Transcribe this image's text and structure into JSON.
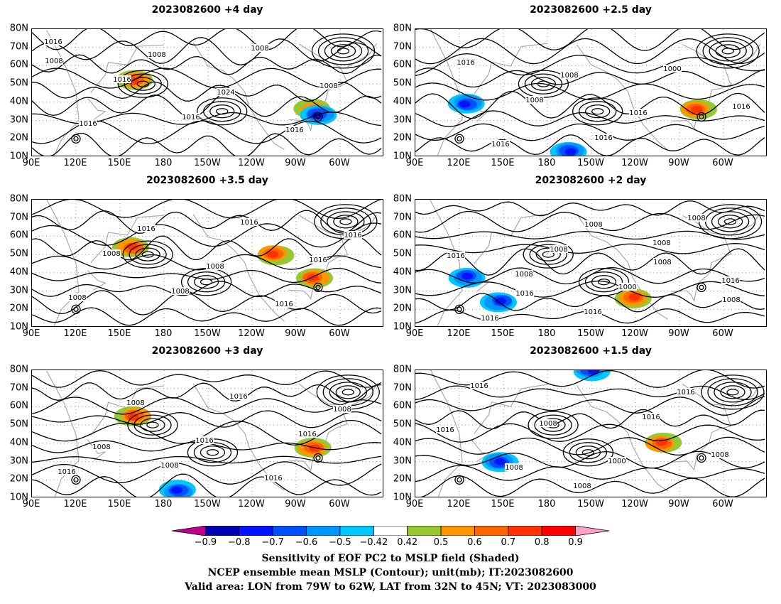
{
  "panels": [
    {
      "title": "2023082600  +4 day",
      "contour_labels": [
        "1016",
        "1016",
        "1016",
        "1008",
        "1008",
        "1016",
        "1008",
        "1024",
        "1016",
        "1008"
      ],
      "shading": [
        {
          "lon": 160,
          "lat": 52,
          "kind": "warm"
        },
        {
          "lon": 282,
          "lat": 36,
          "kind": "warm"
        },
        {
          "lon": 285,
          "lat": 33,
          "kind": "cold"
        }
      ]
    },
    {
      "title": "2023082600  +2.5 day",
      "contour_labels": [
        "1016",
        "1008",
        "1016",
        "1000",
        "1016",
        "1016",
        "1008",
        "1016"
      ],
      "shading": [
        {
          "lon": 282,
          "lat": 36,
          "kind": "warm"
        },
        {
          "lon": 125,
          "lat": 39,
          "kind": "cold"
        },
        {
          "lon": 195,
          "lat": 13,
          "kind": "cold"
        }
      ]
    },
    {
      "title": "2023082600  +3.5 day",
      "contour_labels": [
        "1008",
        "1008",
        "1016",
        "1016",
        "1008",
        "1016",
        "1008",
        "1016",
        "1016"
      ],
      "shading": [
        {
          "lon": 158,
          "lat": 54,
          "kind": "warm"
        },
        {
          "lon": 282,
          "lat": 37,
          "kind": "warm"
        },
        {
          "lon": 255,
          "lat": 50,
          "kind": "warm"
        }
      ]
    },
    {
      "title": "2023082600  +2 day",
      "contour_labels": [
        "1008",
        "1016",
        "1008",
        "1016",
        "1016",
        "1008",
        "1000",
        "1008",
        "1016",
        "1016",
        "1008",
        "1008",
        "1008"
      ],
      "shading": [
        {
          "lon": 238,
          "lat": 26,
          "kind": "warm"
        },
        {
          "lon": 148,
          "lat": 24,
          "kind": "cold"
        },
        {
          "lon": 125,
          "lat": 38,
          "kind": "cold"
        }
      ]
    },
    {
      "title": "2023082600  +3 day",
      "contour_labels": [
        "1008",
        "1016",
        "1016",
        "1016",
        "1008",
        "1016",
        "1016",
        "1008",
        "1008"
      ],
      "shading": [
        {
          "lon": 160,
          "lat": 55,
          "kind": "warm"
        },
        {
          "lon": 282,
          "lat": 38,
          "kind": "warm"
        },
        {
          "lon": 190,
          "lat": 14,
          "kind": "cold"
        }
      ]
    },
    {
      "title": "2023082600  +1.5 day",
      "contour_labels": [
        "1008",
        "1016",
        "1008",
        "1016",
        "1008",
        "1000",
        "1016",
        "1016",
        "1008"
      ],
      "shading": [
        {
          "lon": 148,
          "lat": 30,
          "kind": "cold"
        },
        {
          "lon": 210,
          "lat": 80,
          "kind": "cold"
        },
        {
          "lon": 258,
          "lat": 40,
          "kind": "warm"
        }
      ]
    }
  ],
  "lat_ticks": [
    "80N",
    "70N",
    "60N",
    "50N",
    "40N",
    "30N",
    "20N",
    "10N"
  ],
  "lon_ticks": [
    "90E",
    "120E",
    "150E",
    "180",
    "150W",
    "120W",
    "90W",
    "60W"
  ],
  "colorbar": {
    "labels": [
      "−0.9",
      "−0.8",
      "−0.7",
      "−0.6",
      "−0.5",
      "−0.42",
      "0.42",
      "0.5",
      "0.6",
      "0.7",
      "0.8",
      "0.9"
    ],
    "colors": [
      "#c0008c",
      "#0000b4",
      "#0014ff",
      "#0050ff",
      "#0096ff",
      "#00c8ff",
      "#ffffff",
      "#96c832",
      "#ff9600",
      "#ff6400",
      "#ff3200",
      "#ff0000",
      "#ffa0c8"
    ]
  },
  "captions": [
    "Sensitivity of EOF PC2 to MSLP field (Shaded)",
    "NCEP ensemble mean MSLP (Contour); unit(mb); IT:2023082600",
    "Valid area: LON from 79W to 62W, LAT from 32N to 45N; VT: 2023083000"
  ]
}
